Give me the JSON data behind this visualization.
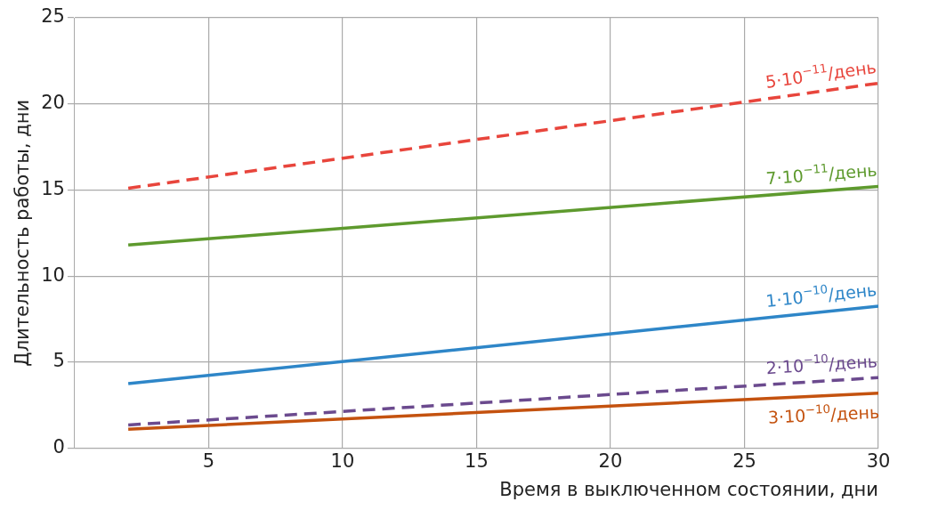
{
  "chart_data": {
    "type": "line",
    "xlabel": "Время в выключенном состоянии, дни",
    "ylabel": "Длительность работы, дни",
    "xlim": [
      0,
      30
    ],
    "xticks": [
      5,
      10,
      15,
      20,
      25,
      30
    ],
    "ylim": [
      0,
      25
    ],
    "yticks": [
      0,
      5,
      10,
      15,
      20,
      25
    ],
    "grid": true,
    "legend": false,
    "marker": "none",
    "x": [
      2,
      30
    ],
    "series": [
      {
        "name": "5·10$^{−11}$/день",
        "color": "#e8453c",
        "line_style": "dashed",
        "values": [
          15.1,
          21.2
        ]
      },
      {
        "name": "7·10$^{−11}$/день",
        "color": "#5e9a2e",
        "line_style": "solid",
        "values": [
          11.8,
          15.2
        ]
      },
      {
        "name": "1·10$^{−10}$/день",
        "color": "#2e86c8",
        "line_style": "solid",
        "values": [
          3.75,
          8.25
        ]
      },
      {
        "name": "2·10$^{−10}$/день",
        "color": "#6b4a8e",
        "line_style": "dashed",
        "values": [
          1.35,
          4.1
        ]
      },
      {
        "name": "3·10$^{−10}$/день",
        "color": "#c4520f",
        "line_style": "solid",
        "values": [
          1.1,
          3.2
        ]
      }
    ]
  }
}
